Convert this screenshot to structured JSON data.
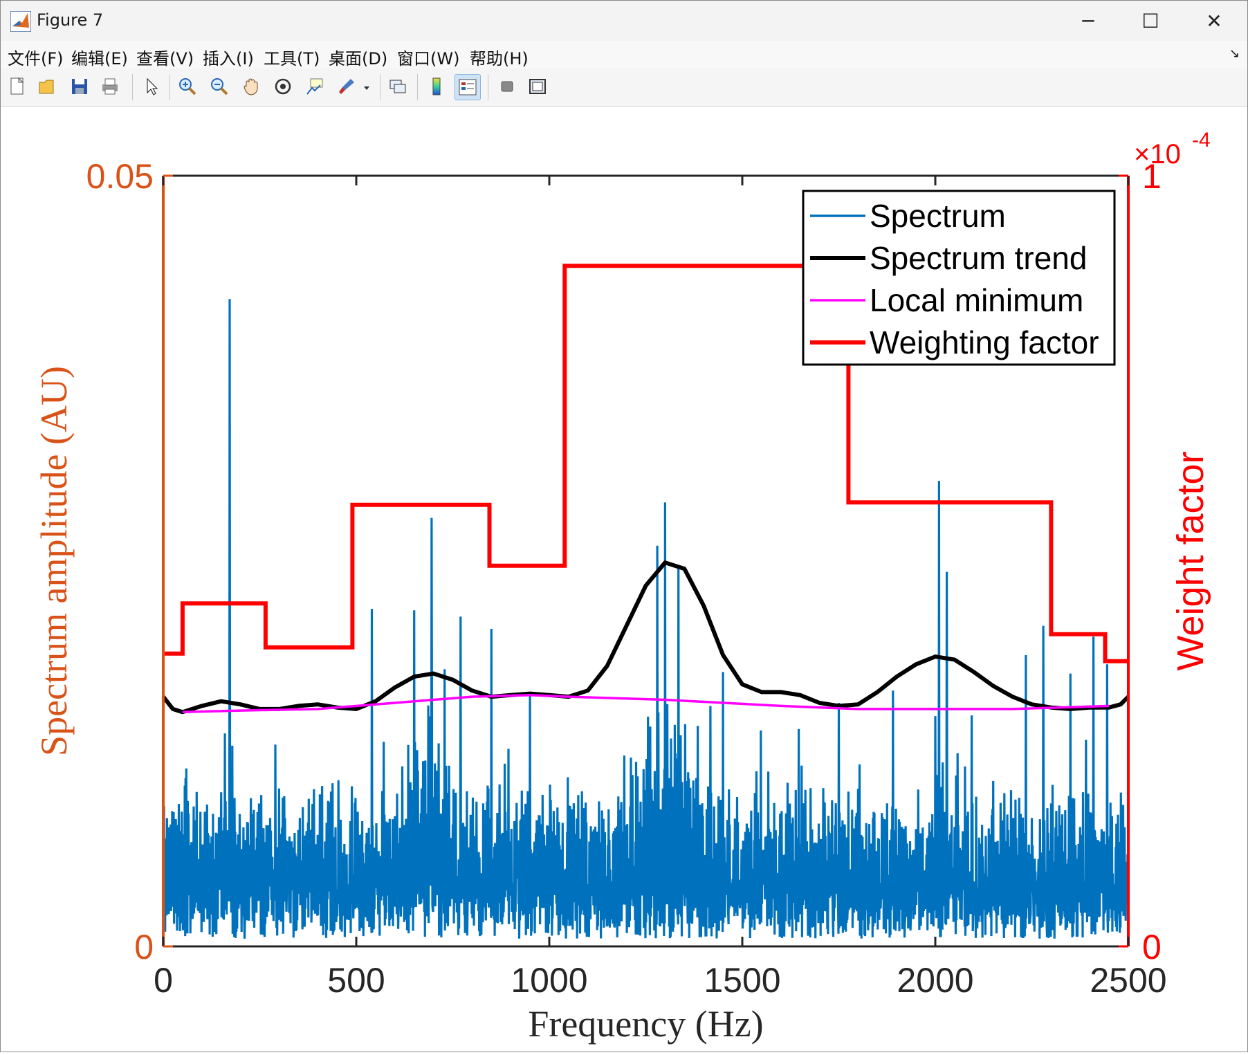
{
  "window": {
    "title": "Figure 7",
    "minimize_glyph": "─",
    "maximize_glyph": "☐",
    "close_glyph": "✕"
  },
  "menu": {
    "items": [
      "文件(F)",
      "编辑(E)",
      "查看(V)",
      "插入(I)",
      "工具(T)",
      "桌面(D)",
      "窗口(W)",
      "帮助(H)"
    ],
    "dock_glyph": "↘"
  },
  "toolbar": {
    "icons": [
      "new-figure-icon",
      "open-file-icon",
      "save-icon",
      "print-icon",
      "edit-plot-pointer-icon",
      "zoom-in-icon",
      "zoom-out-icon",
      "pan-hand-icon",
      "rotate-3d-icon",
      "data-cursor-icon",
      "brush-icon",
      "link-plot-icon",
      "colorbar-icon",
      "legend-icon",
      "hide-plot-tools-icon",
      "show-plot-tools-icon"
    ]
  },
  "colors": {
    "spectrum": "#0072BD",
    "trend": "#000000",
    "local_min": "#FF00FF",
    "weight": "#FF0000",
    "left_axis": "#D95319",
    "right_axis": "#FF0000"
  },
  "chart_data": {
    "type": "line",
    "xlabel": "Frequency (Hz)",
    "ylabel_left": "Spectrum amplitude (AU)",
    "ylabel_right": "Weight factor",
    "right_exponent": "×10",
    "right_exponent_power": "-4",
    "xlim": [
      0,
      2500
    ],
    "ylim_left": [
      0,
      0.05
    ],
    "ylim_right": [
      0,
      1
    ],
    "x_ticks": [
      0,
      500,
      1000,
      1500,
      2000,
      2500
    ],
    "x_tick_labels": [
      "0",
      "500",
      "1000",
      "1500",
      "2000",
      "2500"
    ],
    "y_left_tick_labels": [
      "0",
      "0.05"
    ],
    "y_right_tick_labels": [
      "0",
      "1"
    ],
    "legend": [
      "Spectrum",
      "Spectrum trend",
      "Local minimum",
      "Weighting factor"
    ],
    "legend_location": "top-right",
    "series": [
      {
        "name": "Weighting factor",
        "axis": "right",
        "unit": "1e-4",
        "steps": [
          {
            "x0": 0,
            "x1": 50,
            "y": 0.38
          },
          {
            "x0": 50,
            "x1": 265,
            "y": 0.445
          },
          {
            "x0": 265,
            "x1": 490,
            "y": 0.388
          },
          {
            "x0": 490,
            "x1": 845,
            "y": 0.573
          },
          {
            "x0": 845,
            "x1": 1040,
            "y": 0.494
          },
          {
            "x0": 1040,
            "x1": 1775,
            "y": 0.883
          },
          {
            "x0": 1775,
            "x1": 2300,
            "y": 0.576
          },
          {
            "x0": 2300,
            "x1": 2440,
            "y": 0.405
          },
          {
            "x0": 2440,
            "x1": 2500,
            "y": 0.37
          }
        ]
      },
      {
        "name": "Spectrum trend",
        "axis": "left",
        "x": [
          0,
          25,
          50,
          100,
          150,
          200,
          250,
          300,
          350,
          400,
          450,
          500,
          550,
          600,
          650,
          700,
          750,
          800,
          850,
          900,
          950,
          1000,
          1050,
          1100,
          1150,
          1200,
          1250,
          1300,
          1350,
          1400,
          1450,
          1500,
          1550,
          1600,
          1650,
          1700,
          1750,
          1800,
          1850,
          1900,
          1950,
          2000,
          2050,
          2100,
          2150,
          2200,
          2250,
          2300,
          2350,
          2400,
          2450,
          2480,
          2500
        ],
        "values": [
          0.0162,
          0.0154,
          0.0152,
          0.0156,
          0.0159,
          0.0157,
          0.0154,
          0.0154,
          0.0156,
          0.0157,
          0.0155,
          0.0154,
          0.0159,
          0.0168,
          0.0175,
          0.0177,
          0.0173,
          0.0166,
          0.0162,
          0.0163,
          0.0164,
          0.0163,
          0.0162,
          0.0166,
          0.0182,
          0.0208,
          0.0234,
          0.0249,
          0.0245,
          0.0221,
          0.0189,
          0.017,
          0.0165,
          0.0165,
          0.0163,
          0.0158,
          0.0156,
          0.0157,
          0.0165,
          0.0175,
          0.0183,
          0.0188,
          0.0186,
          0.0178,
          0.0169,
          0.0162,
          0.0157,
          0.0155,
          0.0154,
          0.0155,
          0.0155,
          0.0157,
          0.0162
        ]
      },
      {
        "name": "Local minimum",
        "axis": "left",
        "x": [
          50,
          200,
          400,
          600,
          800,
          950,
          1050,
          1300,
          1600,
          1800,
          2000,
          2200,
          2450
        ],
        "values": [
          0.0152,
          0.0153,
          0.0154,
          0.0158,
          0.0162,
          0.0163,
          0.0162,
          0.016,
          0.0156,
          0.0154,
          0.0154,
          0.0154,
          0.0156
        ]
      },
      {
        "name": "Spectrum",
        "axis": "left",
        "description_of_peaks": "dense noisy line spectrum",
        "peaks": [
          {
            "x": 172,
            "y": 0.042
          },
          {
            "x": 695,
            "y": 0.0278
          },
          {
            "x": 1300,
            "y": 0.0288
          },
          {
            "x": 2010,
            "y": 0.0302
          },
          {
            "x": 540,
            "y": 0.0219
          },
          {
            "x": 650,
            "y": 0.0218
          },
          {
            "x": 1335,
            "y": 0.0245
          },
          {
            "x": 1280,
            "y": 0.026
          },
          {
            "x": 2030,
            "y": 0.0243
          },
          {
            "x": 1890,
            "y": 0.0166
          },
          {
            "x": 2235,
            "y": 0.0189
          },
          {
            "x": 2410,
            "y": 0.0201
          },
          {
            "x": 2280,
            "y": 0.0208
          },
          {
            "x": 2350,
            "y": 0.0177
          },
          {
            "x": 2445,
            "y": 0.0183
          },
          {
            "x": 850,
            "y": 0.0206
          },
          {
            "x": 770,
            "y": 0.0214
          },
          {
            "x": 1750,
            "y": 0.0158
          },
          {
            "x": 950,
            "y": 0.0163
          },
          {
            "x": 1450,
            "y": 0.0178
          }
        ],
        "baseline_range": [
          0.001,
          0.0115
        ],
        "dense_band_ranges": [
          [
            600,
            760
          ],
          [
            1170,
            1420
          ]
        ]
      }
    ]
  }
}
